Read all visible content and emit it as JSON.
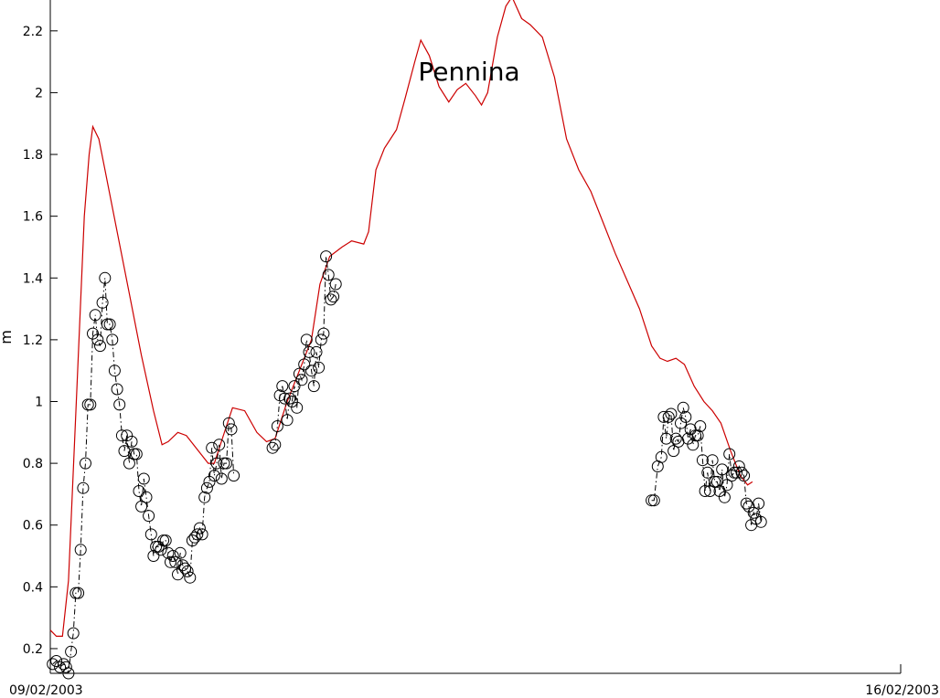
{
  "chart_data": {
    "type": "line",
    "title": "Pennina",
    "ylabel": "m",
    "xlabel": "",
    "x_unit": "days",
    "xlim": [
      0,
      7
    ],
    "ylim": [
      0.12,
      2.3
    ],
    "x_ticks": [
      {
        "x": 0,
        "label": "09/02/2003"
      },
      {
        "x": 7,
        "label": "16/02/2003"
      }
    ],
    "y_ticks": [
      0.2,
      0.4,
      0.6,
      0.8,
      1,
      1.2,
      1.4,
      1.6,
      1.8,
      2,
      2.2
    ],
    "y_tick_labels": [
      "0.2",
      "0.4",
      "0.6",
      "0.8",
      "1",
      "1.2",
      "1.4",
      "1.6",
      "1.8",
      "2",
      "2.2"
    ],
    "grid": false,
    "legend": "none",
    "colors": {
      "red": "#cc0000",
      "black": "#000000"
    },
    "series": [
      {
        "style": "red-solid-line",
        "points": [
          [
            0.0,
            0.26
          ],
          [
            0.05,
            0.24
          ],
          [
            0.1,
            0.24
          ],
          [
            0.15,
            0.42
          ],
          [
            0.22,
            1.05
          ],
          [
            0.28,
            1.6
          ],
          [
            0.32,
            1.8
          ],
          [
            0.35,
            1.89
          ],
          [
            0.4,
            1.85
          ],
          [
            0.45,
            1.75
          ],
          [
            0.55,
            1.55
          ],
          [
            0.65,
            1.35
          ],
          [
            0.75,
            1.15
          ],
          [
            0.85,
            0.97
          ],
          [
            0.92,
            0.86
          ],
          [
            0.97,
            0.87
          ],
          [
            1.05,
            0.9
          ],
          [
            1.12,
            0.89
          ],
          [
            1.2,
            0.85
          ],
          [
            1.3,
            0.8
          ],
          [
            1.35,
            0.8
          ],
          [
            1.45,
            0.92
          ],
          [
            1.5,
            0.98
          ],
          [
            1.6,
            0.97
          ],
          [
            1.7,
            0.9
          ],
          [
            1.78,
            0.87
          ],
          [
            1.85,
            0.88
          ],
          [
            1.95,
            1.0
          ],
          [
            2.05,
            1.1
          ],
          [
            2.15,
            1.2
          ],
          [
            2.22,
            1.38
          ],
          [
            2.3,
            1.47
          ],
          [
            2.4,
            1.5
          ],
          [
            2.48,
            1.52
          ],
          [
            2.58,
            1.51
          ],
          [
            2.62,
            1.55
          ],
          [
            2.68,
            1.75
          ],
          [
            2.75,
            1.82
          ],
          [
            2.85,
            1.88
          ],
          [
            2.92,
            1.98
          ],
          [
            3.0,
            2.1
          ],
          [
            3.05,
            2.17
          ],
          [
            3.12,
            2.12
          ],
          [
            3.2,
            2.02
          ],
          [
            3.28,
            1.97
          ],
          [
            3.35,
            2.01
          ],
          [
            3.42,
            2.03
          ],
          [
            3.5,
            1.99
          ],
          [
            3.55,
            1.96
          ],
          [
            3.6,
            2.0
          ],
          [
            3.68,
            2.18
          ],
          [
            3.75,
            2.28
          ],
          [
            3.8,
            2.31
          ],
          [
            3.88,
            2.24
          ],
          [
            3.95,
            2.22
          ],
          [
            4.05,
            2.18
          ],
          [
            4.15,
            2.05
          ],
          [
            4.25,
            1.85
          ],
          [
            4.35,
            1.75
          ],
          [
            4.45,
            1.68
          ],
          [
            4.55,
            1.58
          ],
          [
            4.65,
            1.48
          ],
          [
            4.75,
            1.39
          ],
          [
            4.85,
            1.3
          ],
          [
            4.95,
            1.18
          ],
          [
            5.02,
            1.14
          ],
          [
            5.08,
            1.13
          ],
          [
            5.15,
            1.14
          ],
          [
            5.22,
            1.12
          ],
          [
            5.3,
            1.05
          ],
          [
            5.38,
            1.0
          ],
          [
            5.45,
            0.97
          ],
          [
            5.52,
            0.93
          ],
          [
            5.6,
            0.84
          ],
          [
            5.68,
            0.76
          ],
          [
            5.74,
            0.73
          ],
          [
            5.78,
            0.74
          ]
        ]
      },
      {
        "style": "black-dashdot-circles",
        "segments": [
          [
            [
              0.02,
              0.15
            ],
            [
              0.05,
              0.16
            ],
            [
              0.08,
              0.14
            ],
            [
              0.11,
              0.15
            ],
            [
              0.13,
              0.14
            ],
            [
              0.15,
              0.12
            ],
            [
              0.17,
              0.19
            ],
            [
              0.19,
              0.25
            ],
            [
              0.21,
              0.38
            ],
            [
              0.23,
              0.38
            ],
            [
              0.25,
              0.52
            ],
            [
              0.27,
              0.72
            ],
            [
              0.29,
              0.8
            ],
            [
              0.31,
              0.99
            ],
            [
              0.33,
              0.99
            ],
            [
              0.35,
              1.22
            ],
            [
              0.37,
              1.28
            ],
            [
              0.39,
              1.2
            ],
            [
              0.41,
              1.18
            ],
            [
              0.43,
              1.32
            ],
            [
              0.45,
              1.4
            ],
            [
              0.47,
              1.25
            ],
            [
              0.49,
              1.25
            ],
            [
              0.51,
              1.2
            ],
            [
              0.53,
              1.1
            ],
            [
              0.55,
              1.04
            ],
            [
              0.57,
              0.99
            ],
            [
              0.59,
              0.89
            ],
            [
              0.61,
              0.84
            ],
            [
              0.63,
              0.89
            ],
            [
              0.65,
              0.8
            ],
            [
              0.67,
              0.87
            ],
            [
              0.69,
              0.83
            ],
            [
              0.71,
              0.83
            ],
            [
              0.73,
              0.71
            ],
            [
              0.75,
              0.66
            ],
            [
              0.77,
              0.75
            ],
            [
              0.79,
              0.69
            ],
            [
              0.81,
              0.63
            ],
            [
              0.83,
              0.57
            ],
            [
              0.85,
              0.5
            ],
            [
              0.87,
              0.53
            ],
            [
              0.89,
              0.53
            ],
            [
              0.91,
              0.52
            ],
            [
              0.93,
              0.55
            ],
            [
              0.95,
              0.55
            ],
            [
              0.97,
              0.51
            ],
            [
              0.99,
              0.48
            ],
            [
              1.01,
              0.5
            ],
            [
              1.03,
              0.48
            ],
            [
              1.05,
              0.44
            ],
            [
              1.07,
              0.51
            ],
            [
              1.09,
              0.47
            ],
            [
              1.11,
              0.46
            ],
            [
              1.13,
              0.45
            ],
            [
              1.15,
              0.43
            ],
            [
              1.17,
              0.55
            ],
            [
              1.19,
              0.56
            ],
            [
              1.21,
              0.57
            ],
            [
              1.23,
              0.59
            ],
            [
              1.25,
              0.57
            ],
            [
              1.27,
              0.69
            ],
            [
              1.29,
              0.72
            ],
            [
              1.31,
              0.74
            ],
            [
              1.33,
              0.85
            ],
            [
              1.35,
              0.76
            ],
            [
              1.37,
              0.8
            ],
            [
              1.39,
              0.86
            ],
            [
              1.41,
              0.75
            ],
            [
              1.43,
              0.8
            ],
            [
              1.45,
              0.8
            ],
            [
              1.47,
              0.93
            ],
            [
              1.49,
              0.91
            ],
            [
              1.51,
              0.76
            ]
          ],
          [
            [
              1.83,
              0.85
            ],
            [
              1.85,
              0.86
            ],
            [
              1.87,
              0.92
            ],
            [
              1.89,
              1.02
            ],
            [
              1.91,
              1.05
            ],
            [
              1.93,
              1.01
            ],
            [
              1.95,
              0.94
            ],
            [
              1.97,
              1.01
            ],
            [
              1.99,
              1.0
            ],
            [
              2.01,
              1.05
            ],
            [
              2.03,
              0.98
            ],
            [
              2.05,
              1.09
            ],
            [
              2.07,
              1.07
            ],
            [
              2.09,
              1.12
            ],
            [
              2.11,
              1.2
            ],
            [
              2.13,
              1.16
            ],
            [
              2.15,
              1.1
            ],
            [
              2.17,
              1.05
            ],
            [
              2.19,
              1.16
            ],
            [
              2.21,
              1.11
            ],
            [
              2.23,
              1.2
            ],
            [
              2.25,
              1.22
            ],
            [
              2.27,
              1.47
            ],
            [
              2.29,
              1.41
            ],
            [
              2.31,
              1.33
            ],
            [
              2.33,
              1.34
            ],
            [
              2.35,
              1.38
            ]
          ],
          [
            [
              4.95,
              0.68
            ],
            [
              4.97,
              0.68
            ],
            [
              5.0,
              0.79
            ],
            [
              5.03,
              0.82
            ],
            [
              5.05,
              0.95
            ],
            [
              5.07,
              0.88
            ],
            [
              5.09,
              0.95
            ],
            [
              5.11,
              0.96
            ],
            [
              5.13,
              0.84
            ],
            [
              5.15,
              0.88
            ],
            [
              5.17,
              0.87
            ],
            [
              5.19,
              0.93
            ],
            [
              5.21,
              0.98
            ],
            [
              5.23,
              0.95
            ],
            [
              5.25,
              0.88
            ],
            [
              5.27,
              0.91
            ],
            [
              5.29,
              0.86
            ],
            [
              5.31,
              0.89
            ],
            [
              5.33,
              0.89
            ],
            [
              5.35,
              0.92
            ],
            [
              5.37,
              0.81
            ],
            [
              5.39,
              0.71
            ],
            [
              5.41,
              0.77
            ],
            [
              5.43,
              0.71
            ],
            [
              5.45,
              0.81
            ],
            [
              5.47,
              0.74
            ],
            [
              5.49,
              0.74
            ],
            [
              5.51,
              0.71
            ],
            [
              5.53,
              0.78
            ],
            [
              5.55,
              0.69
            ],
            [
              5.57,
              0.73
            ],
            [
              5.59,
              0.83
            ],
            [
              5.61,
              0.76
            ],
            [
              5.63,
              0.77
            ],
            [
              5.65,
              0.77
            ],
            [
              5.67,
              0.79
            ],
            [
              5.69,
              0.77
            ],
            [
              5.71,
              0.76
            ],
            [
              5.73,
              0.67
            ],
            [
              5.75,
              0.66
            ],
            [
              5.77,
              0.6
            ],
            [
              5.79,
              0.64
            ],
            [
              5.81,
              0.62
            ],
            [
              5.83,
              0.67
            ],
            [
              5.85,
              0.61
            ]
          ]
        ]
      }
    ]
  }
}
